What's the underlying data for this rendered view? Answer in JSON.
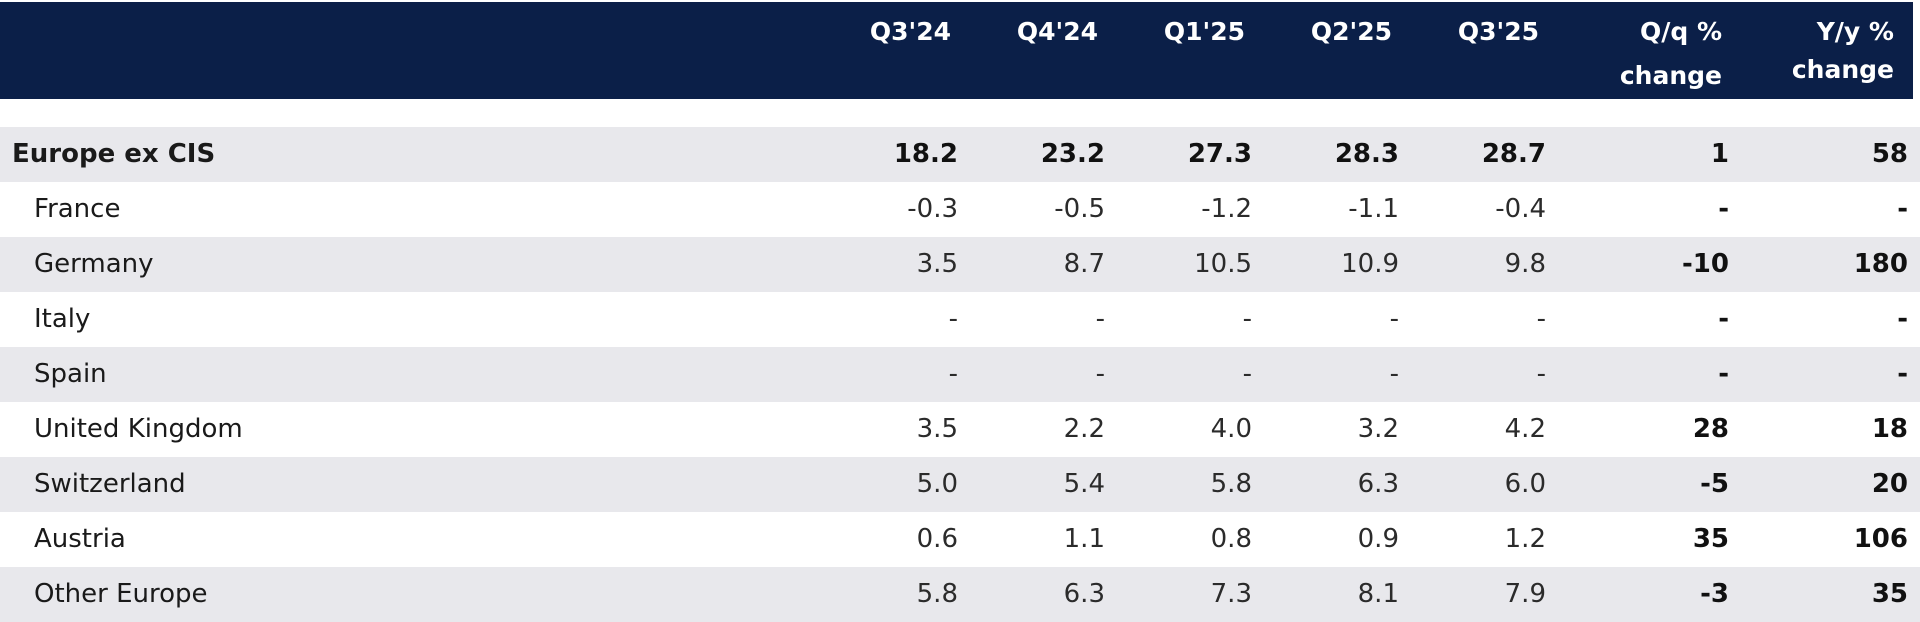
{
  "header": {
    "cols": [
      "Q3'24",
      "Q4'24",
      "Q1'25",
      "Q2'25",
      "Q3'25"
    ],
    "qq_line1": "Q/q %",
    "qq_line2": "change",
    "yy_line1": "Y/y %",
    "yy_line2": "change"
  },
  "rows": [
    {
      "label": "Europe ex CIS",
      "values": [
        "18.2",
        "23.2",
        "27.3",
        "28.3",
        "28.7"
      ],
      "qq": "1",
      "yy": "58"
    },
    {
      "label": "France",
      "values": [
        "-0.3",
        "-0.5",
        "-1.2",
        "-1.1",
        "-0.4"
      ],
      "qq": "-",
      "yy": "-"
    },
    {
      "label": "Germany",
      "values": [
        "3.5",
        "8.7",
        "10.5",
        "10.9",
        "9.8"
      ],
      "qq": "-10",
      "yy": "180"
    },
    {
      "label": "Italy",
      "values": [
        "-",
        "-",
        "-",
        "-",
        "-"
      ],
      "qq": "-",
      "yy": "-"
    },
    {
      "label": "Spain",
      "values": [
        "-",
        "-",
        "-",
        "-",
        "-"
      ],
      "qq": "-",
      "yy": "-"
    },
    {
      "label": "United Kingdom",
      "values": [
        "3.5",
        "2.2",
        "4.0",
        "3.2",
        "4.2"
      ],
      "qq": "28",
      "yy": "18"
    },
    {
      "label": "Switzerland",
      "values": [
        "5.0",
        "5.4",
        "5.8",
        "6.3",
        "6.0"
      ],
      "qq": "-5",
      "yy": "20"
    },
    {
      "label": "Austria",
      "values": [
        "0.6",
        "1.1",
        "0.8",
        "0.9",
        "1.2"
      ],
      "qq": "35",
      "yy": "106"
    },
    {
      "label": "Other Europe",
      "values": [
        "5.8",
        "6.3",
        "7.3",
        "8.1",
        "7.9"
      ],
      "qq": "-3",
      "yy": "35"
    }
  ]
}
